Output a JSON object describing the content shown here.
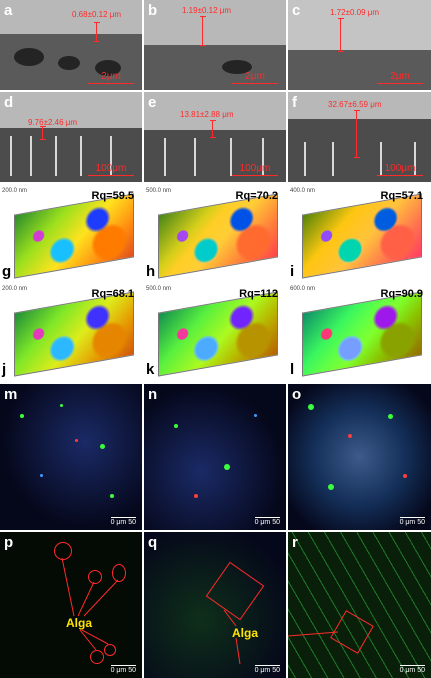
{
  "sem_panels": [
    {
      "letter": "a",
      "measure": "0.68±0.12 μm",
      "scale": "2μm"
    },
    {
      "letter": "b",
      "measure": "1.19±0.12 μm",
      "scale": "2μm"
    },
    {
      "letter": "c",
      "measure": "1.72±0.09 μm",
      "scale": "2μm"
    },
    {
      "letter": "d",
      "measure": "9.76±2.46 μm",
      "scale": "100μm"
    },
    {
      "letter": "e",
      "measure": "13.81±2.88 μm",
      "scale": "100μm"
    },
    {
      "letter": "f",
      "measure": "32.67±6.59 μm",
      "scale": "100μm"
    }
  ],
  "afm_panels": [
    {
      "letter": "g",
      "rq": "Rq=59.5",
      "ztop": "200.0 nm"
    },
    {
      "letter": "h",
      "rq": "Rq=70.2",
      "ztop": "500.0 nm"
    },
    {
      "letter": "i",
      "rq": "Rq=57.1",
      "ztop": "400.0 nm"
    },
    {
      "letter": "j",
      "rq": "Rq=68.1",
      "ztop": "200.0 nm"
    },
    {
      "letter": "k",
      "rq": "Rq=112",
      "ztop": "500.0 nm"
    },
    {
      "letter": "l",
      "rq": "Rq=90.9",
      "ztop": "600.0 nm"
    }
  ],
  "flu_panels": [
    {
      "letter": "m",
      "scale": "0   μm   50"
    },
    {
      "letter": "n",
      "scale": "0   μm   50"
    },
    {
      "letter": "o",
      "scale": "0   μm   50"
    },
    {
      "letter": "p",
      "scale": "0   μm   50"
    },
    {
      "letter": "q",
      "scale": "0   μm   50"
    },
    {
      "letter": "r",
      "scale": "0   μm   50"
    }
  ],
  "annotations": {
    "alga_p": "Alga",
    "alga_q": "Alga"
  },
  "colors": {
    "measure_red": "#ff2a2a",
    "alga_yellow": "#ffe600"
  }
}
